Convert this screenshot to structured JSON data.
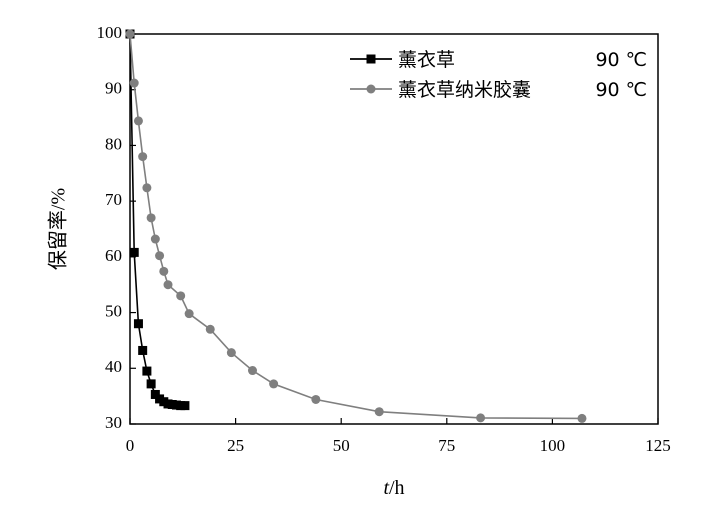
{
  "chart_data": {
    "type": "line",
    "xlabel_italic": "t",
    "xlabel_rest": "/h",
    "ylabel": "保留率/%",
    "xlim": [
      0,
      125
    ],
    "ylim": [
      30,
      100
    ],
    "xticks": [
      0,
      25,
      50,
      75,
      100,
      125
    ],
    "yticks": [
      30,
      40,
      50,
      60,
      70,
      80,
      90,
      100
    ],
    "grid": false,
    "legend_position": "top-right",
    "series": [
      {
        "name": "薰衣草",
        "temp": "90 ℃",
        "color": "#000000",
        "marker": "square",
        "x": [
          0,
          1,
          2,
          3,
          4,
          5,
          6,
          7,
          8,
          9,
          10,
          11,
          12,
          13
        ],
        "y": [
          100,
          60.8,
          48,
          43.2,
          39.5,
          37.2,
          35.3,
          34.5,
          34.0,
          33.6,
          33.5,
          33.4,
          33.3,
          33.3
        ]
      },
      {
        "name": "薰衣草纳米胶囊",
        "temp": "90 ℃",
        "color": "#7f7f7f",
        "marker": "circle",
        "x": [
          0,
          1,
          2,
          3,
          4,
          5,
          6,
          7,
          8,
          9,
          12,
          14,
          19,
          24,
          29,
          34,
          44,
          59,
          83,
          107
        ],
        "y": [
          100,
          91.2,
          84.4,
          78.0,
          72.4,
          67.0,
          63.2,
          60.2,
          57.4,
          55.0,
          53.0,
          49.8,
          47.0,
          42.8,
          39.6,
          37.2,
          34.4,
          32.2,
          31.1,
          31.0
        ]
      }
    ]
  }
}
